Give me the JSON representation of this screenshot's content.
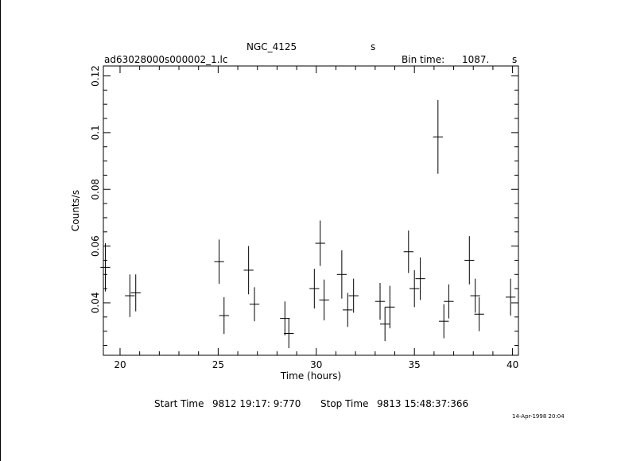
{
  "header": {
    "object": "NGC_4125",
    "object_unit": "s",
    "filename": "ad63028000s000002_1.lc",
    "bin_label": "Bin time:",
    "bin_value": "1087.",
    "bin_unit": "s"
  },
  "footer": {
    "start_label": "Start Time",
    "start_value": "9812  19:17: 9:770",
    "stop_label": "Stop Time",
    "stop_value": "9813  15:48:37:366",
    "date_stamp": "14-Apr-1998 20:04"
  },
  "chart_data": {
    "type": "scatter",
    "xlabel": "Time (hours)",
    "ylabel": "Counts/s",
    "xlim": [
      19.15,
      40.3
    ],
    "ylim": [
      0.0215,
      0.1235
    ],
    "x_ticks": [
      20,
      25,
      30,
      35,
      40
    ],
    "x_tick_labels": [
      "20",
      "25",
      "30",
      "35",
      "40"
    ],
    "y_ticks": [
      0.04,
      0.06,
      0.08,
      0.1,
      0.12
    ],
    "y_tick_labels": [
      "0.04",
      "0.06",
      "0.08",
      "0.1",
      "0.12"
    ],
    "x_minor_step": 1,
    "y_minor_step": 0.005,
    "grid": false,
    "colors": {
      "axes": "#000000",
      "points": "#000000"
    },
    "series": [
      {
        "x": [
          19.25,
          20.5,
          20.8,
          25.05,
          25.3,
          26.55,
          26.85,
          28.4,
          28.6,
          29.9,
          30.2,
          30.4,
          31.3,
          31.6,
          31.9,
          33.25,
          33.5,
          33.75,
          34.7,
          35.0,
          35.3,
          36.2,
          36.5,
          36.75,
          37.8,
          38.1,
          38.3,
          39.9
        ],
        "y": [
          0.0525,
          0.0425,
          0.0435,
          0.0545,
          0.0355,
          0.0515,
          0.0395,
          0.0345,
          0.0292,
          0.045,
          0.061,
          0.041,
          0.05,
          0.0375,
          0.0425,
          0.0405,
          0.0325,
          0.0385,
          0.058,
          0.045,
          0.0485,
          0.0985,
          0.0335,
          0.0405,
          0.055,
          0.0425,
          0.036,
          0.042
        ],
        "yerr": [
          0.0085,
          0.0075,
          0.0065,
          0.0078,
          0.0065,
          0.0085,
          0.006,
          0.006,
          0.0052,
          0.007,
          0.008,
          0.0072,
          0.0085,
          0.006,
          0.006,
          0.0065,
          0.006,
          0.0075,
          0.0075,
          0.0065,
          0.0075,
          0.013,
          0.006,
          0.006,
          0.0085,
          0.006,
          0.006,
          0.0065
        ],
        "xerr": [
          0.25,
          0.25,
          0.25,
          0.25,
          0.25,
          0.25,
          0.25,
          0.25,
          0.25,
          0.25,
          0.25,
          0.25,
          0.25,
          0.25,
          0.25,
          0.25,
          0.25,
          0.25,
          0.25,
          0.25,
          0.25,
          0.25,
          0.25,
          0.25,
          0.25,
          0.25,
          0.25,
          0.25
        ]
      }
    ]
  }
}
